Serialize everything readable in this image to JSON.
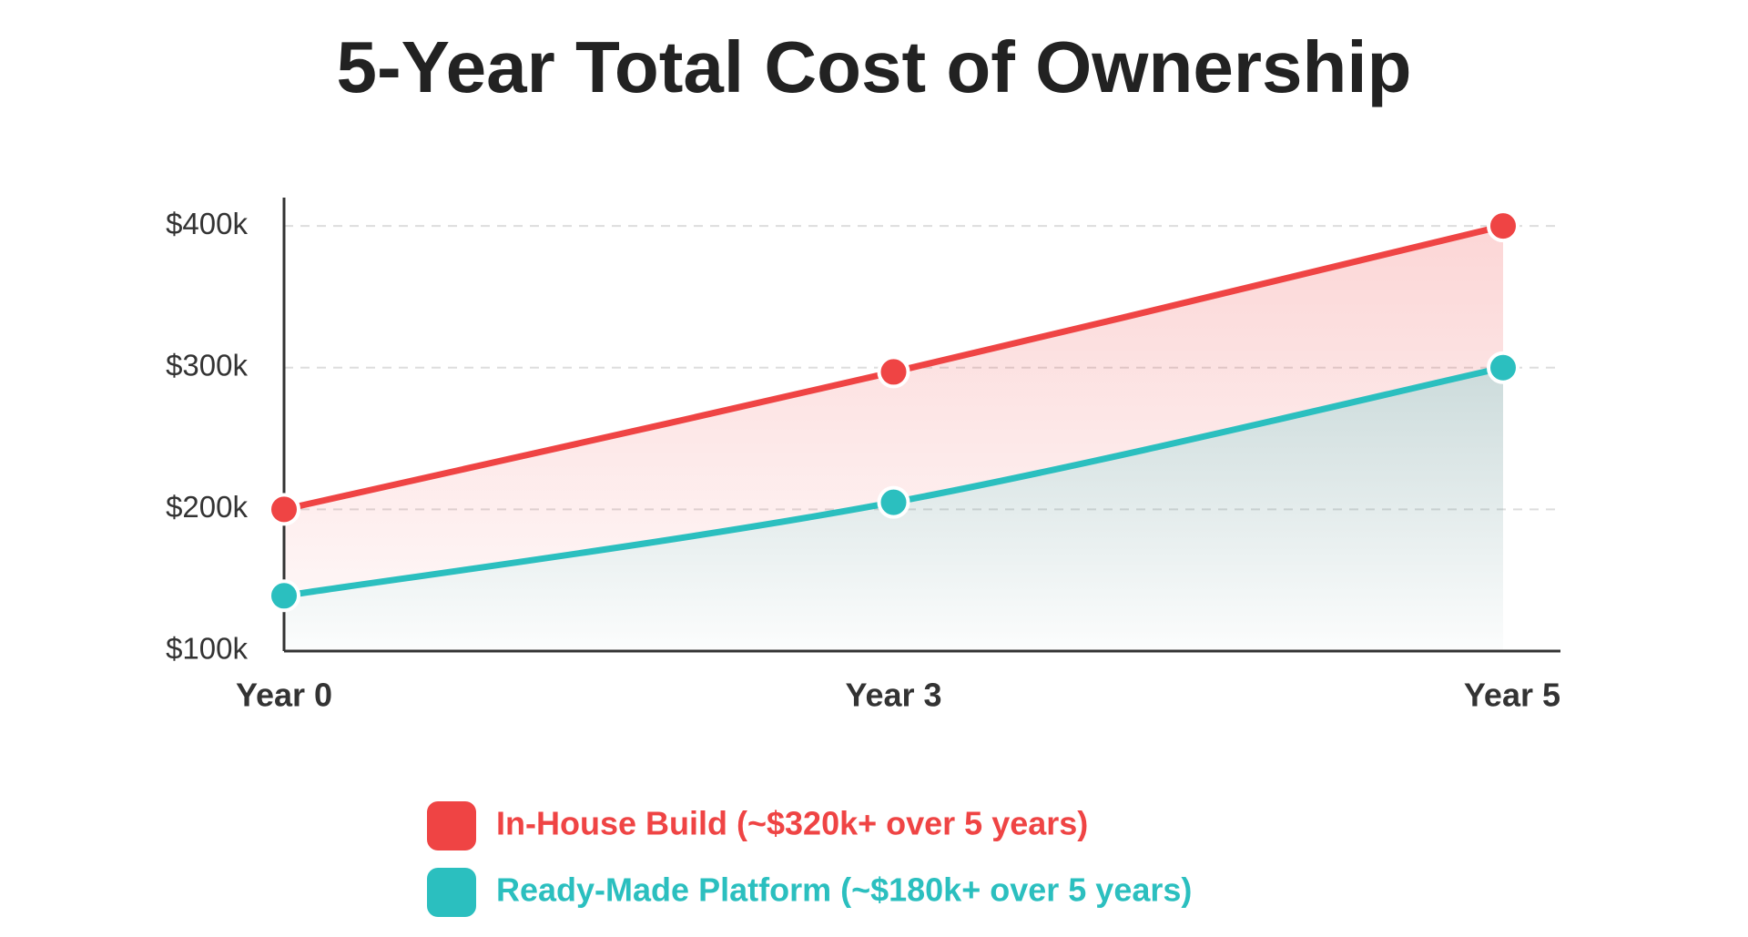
{
  "chart_data": {
    "type": "line",
    "title": "5-Year Total Cost of Ownership",
    "categories": [
      "Year 0",
      "Year 3",
      "Year 5"
    ],
    "series": [
      {
        "name": "In-House Build (~$320k+ over 5 years)",
        "color": "#ef4444",
        "values": [
          200,
          297,
          400
        ]
      },
      {
        "name": "Ready-Made Platform (~$180k+ over 5 years)",
        "color": "#2bbfbf",
        "values": [
          139,
          205,
          300
        ]
      }
    ],
    "ylim": [
      100,
      420
    ],
    "yticks": [
      {
        "value": 100,
        "label": "$100k"
      },
      {
        "value": 200,
        "label": "$200k"
      },
      {
        "value": 300,
        "label": "$300k"
      },
      {
        "value": 400,
        "label": "$400k"
      }
    ],
    "grid": true
  }
}
